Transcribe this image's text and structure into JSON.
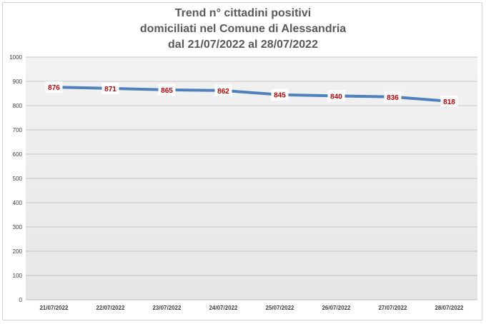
{
  "chart_data": {
    "type": "line",
    "title_lines": [
      "Trend n° cittadini positivi",
      "domiciliati nel Comune di Alessandria",
      "dal 21/07/2022 al 28/07/2022"
    ],
    "categories": [
      "21/07/2022",
      "22/07/2022",
      "23/07/2022",
      "24/07/2022",
      "25/07/2022",
      "26/07/2022",
      "27/07/2022",
      "28/07/2022"
    ],
    "series": [
      {
        "values": [
          876,
          871,
          865,
          862,
          845,
          840,
          836,
          818
        ],
        "color": "#4f81bd"
      }
    ],
    "ylim": [
      0,
      1000
    ],
    "yticks": [
      "0",
      "100",
      "200",
      "300",
      "400",
      "500",
      "600",
      "700",
      "800",
      "900",
      "1000"
    ],
    "data_label_color": "#c00000",
    "grid": true,
    "legend": "none"
  }
}
